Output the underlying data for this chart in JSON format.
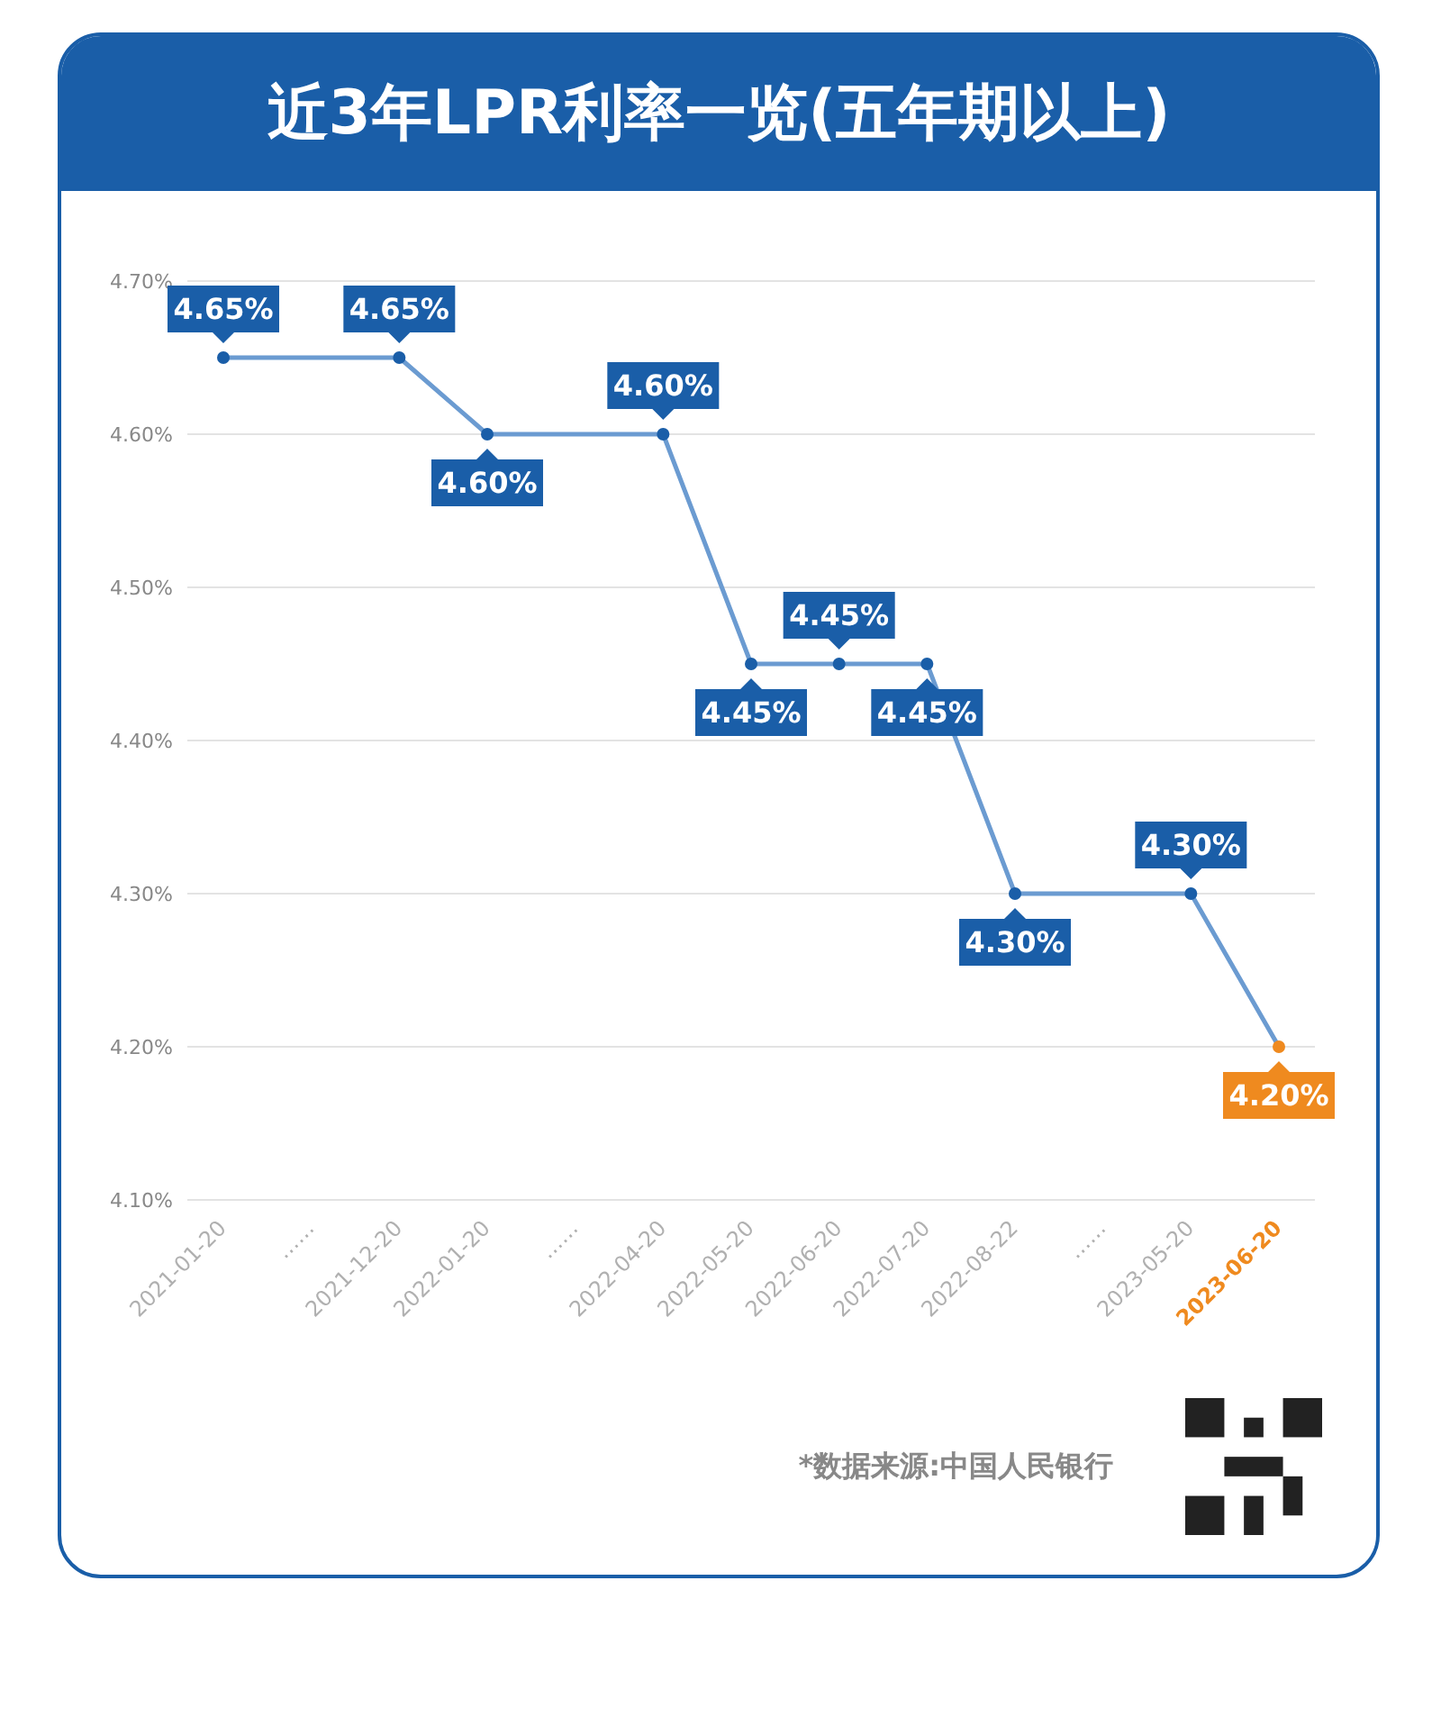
{
  "chart_data": {
    "type": "line",
    "title": "近3年LPR利率一览(五年期以上)",
    "categories": [
      "2021-01-20",
      "……",
      "2021-12-20",
      "2022-01-20",
      "……",
      "2022-04-20",
      "2022-05-20",
      "2022-06-20",
      "2022-07-20",
      "2022-08-22",
      "……",
      "2023-05-20",
      "2023-06-20"
    ],
    "series": [
      {
        "color": "#6b9bd1",
        "colors": [
          "#1a5ea8",
          null,
          "#1a5ea8",
          "#1a5ea8",
          null,
          "#1a5ea8",
          "#1a5ea8",
          "#1a5ea8",
          "#1a5ea8",
          "#1a5ea8",
          null,
          "#1a5ea8",
          "#ef8a1f"
        ],
        "values": [
          4.65,
          null,
          4.65,
          4.6,
          null,
          4.6,
          4.45,
          4.45,
          4.45,
          4.3,
          null,
          4.3,
          4.2
        ],
        "value_labels": [
          "4.65%",
          null,
          "4.65%",
          "4.60%",
          null,
          "4.60%",
          "4.45%",
          "4.45%",
          "4.45%",
          "4.30%",
          null,
          "4.30%",
          "4.20%"
        ]
      }
    ],
    "ylim": [
      4.1,
      4.7
    ],
    "yticks": [
      {
        "value": 4.1,
        "label": "4.10%"
      },
      {
        "value": 4.2,
        "label": "4.20%"
      },
      {
        "value": 4.3,
        "label": "4.30%"
      },
      {
        "value": 4.4,
        "label": "4.40%"
      },
      {
        "value": 4.5,
        "label": "4.50%"
      },
      {
        "value": 4.6,
        "label": "4.60%"
      },
      {
        "value": 4.7,
        "label": "4.70%"
      }
    ],
    "grid": "y",
    "marker": "circle",
    "line_style": "solid",
    "legend": false,
    "annotations": [
      "*数据来源:中国人民银行"
    ]
  }
}
